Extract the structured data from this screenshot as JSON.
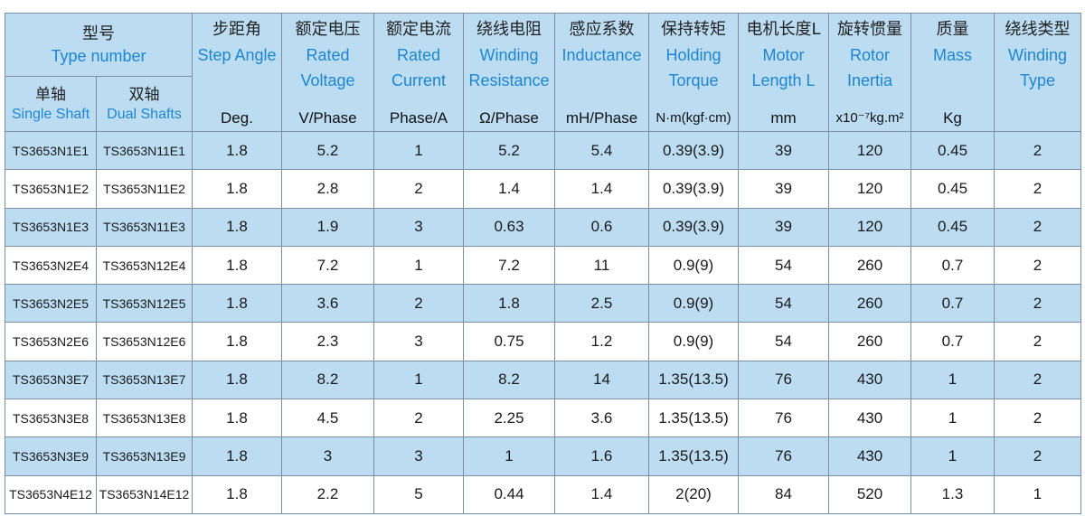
{
  "header": {
    "type_number": {
      "zh": "型号",
      "en": "Type number"
    },
    "single_shaft": {
      "zh": "单轴",
      "en": "Single Shaft"
    },
    "dual_shafts": {
      "zh": "双轴",
      "en": "Dual Shafts"
    },
    "columns": [
      {
        "zh": "步距角",
        "en": [
          "Step Angle"
        ],
        "unit": "Deg."
      },
      {
        "zh": "额定电压",
        "en": [
          "Rated",
          "Voltage"
        ],
        "unit": "V/Phase"
      },
      {
        "zh": "额定电流",
        "en": [
          "Rated",
          "Current"
        ],
        "unit": "Phase/A"
      },
      {
        "zh": "绕线电阻",
        "en": [
          "Winding",
          "Resistance"
        ],
        "unit": "Ω/Phase"
      },
      {
        "zh": "感应系数",
        "en": [
          "Inductance"
        ],
        "unit": "mH/Phase"
      },
      {
        "zh": "保持转矩",
        "en": [
          "Holding",
          "Torque"
        ],
        "unit": "N·m(kgf·cm)"
      },
      {
        "zh": "电机长度L",
        "en": [
          "Motor",
          "Length L"
        ],
        "unit": "mm"
      },
      {
        "zh": "旋转惯量",
        "en": [
          "Rotor",
          "Inertia"
        ],
        "unit": "x10⁻⁷kg.m²"
      },
      {
        "zh": "质量",
        "en": [
          "Mass"
        ],
        "unit": "Kg"
      },
      {
        "zh": "绕线类型",
        "en": [
          "Winding",
          "Type"
        ],
        "unit": ""
      }
    ]
  },
  "rows": [
    {
      "single": "TS3653N1E1",
      "dual": "TS3653N11E1",
      "values": [
        "1.8",
        "5.2",
        "1",
        "5.2",
        "5.4",
        "0.39(3.9)",
        "39",
        "120",
        "0.45",
        "2"
      ]
    },
    {
      "single": "TS3653N1E2",
      "dual": "TS3653N11E2",
      "values": [
        "1.8",
        "2.8",
        "2",
        "1.4",
        "1.4",
        "0.39(3.9)",
        "39",
        "120",
        "0.45",
        "2"
      ]
    },
    {
      "single": "TS3653N1E3",
      "dual": "TS3653N11E3",
      "values": [
        "1.8",
        "1.9",
        "3",
        "0.63",
        "0.6",
        "0.39(3.9)",
        "39",
        "120",
        "0.45",
        "2"
      ]
    },
    {
      "single": "TS3653N2E4",
      "dual": "TS3653N12E4",
      "values": [
        "1.8",
        "7.2",
        "1",
        "7.2",
        "11",
        "0.9(9)",
        "54",
        "260",
        "0.7",
        "2"
      ]
    },
    {
      "single": "TS3653N2E5",
      "dual": "TS3653N12E5",
      "values": [
        "1.8",
        "3.6",
        "2",
        "1.8",
        "2.5",
        "0.9(9)",
        "54",
        "260",
        "0.7",
        "2"
      ]
    },
    {
      "single": "TS3653N2E6",
      "dual": "TS3653N12E6",
      "values": [
        "1.8",
        "2.3",
        "3",
        "0.75",
        "1.2",
        "0.9(9)",
        "54",
        "260",
        "0.7",
        "2"
      ]
    },
    {
      "single": "TS3653N3E7",
      "dual": "TS3653N13E7",
      "values": [
        "1.8",
        "8.2",
        "1",
        "8.2",
        "14",
        "1.35(13.5)",
        "76",
        "430",
        "1",
        "2"
      ]
    },
    {
      "single": "TS3653N3E8",
      "dual": "TS3653N13E8",
      "values": [
        "1.8",
        "4.5",
        "2",
        "2.25",
        "3.6",
        "1.35(13.5)",
        "76",
        "430",
        "1",
        "2"
      ]
    },
    {
      "single": "TS3653N3E9",
      "dual": "TS3653N13E9",
      "values": [
        "1.8",
        "3",
        "3",
        "1",
        "1.6",
        "1.35(13.5)",
        "76",
        "430",
        "1",
        "2"
      ]
    },
    {
      "single": "TS3653N4E12",
      "dual": "TS3653N14E12",
      "values": [
        "1.8",
        "2.2",
        "5",
        "0.44",
        "1.4",
        "2(20)",
        "84",
        "520",
        "1.3",
        "1"
      ]
    }
  ],
  "colors": {
    "header_bg": "#bcdcf2",
    "row_shade": "#bcdcf2",
    "english_text": "#1d86d0",
    "highlight_border": "#e06a6a"
  }
}
